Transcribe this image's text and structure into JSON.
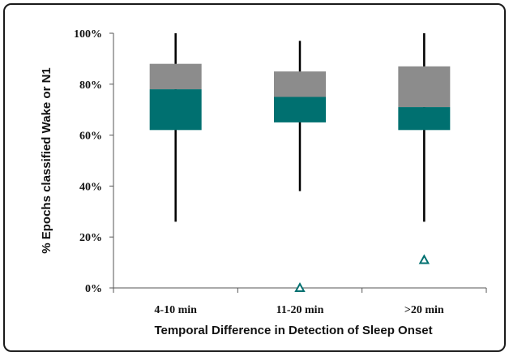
{
  "chart_data": {
    "type": "box",
    "title": "",
    "xlabel": "Temporal Difference in Detection of Sleep Onset",
    "ylabel": "% Epochs classified Wake or N1",
    "categories": [
      "4-10 min",
      "11-20 min",
      ">20 min"
    ],
    "ylim": [
      0,
      100
    ],
    "yticks": [
      0,
      20,
      40,
      60,
      80,
      100
    ],
    "ytick_labels": [
      "0%",
      "20%",
      "40%",
      "60%",
      "80%",
      "100%"
    ],
    "grid": false,
    "legend": "none",
    "boxes": [
      {
        "category": "4-10 min",
        "min": 26,
        "q1": 62,
        "median": 78,
        "q3": 88,
        "max": 100,
        "outliers": []
      },
      {
        "category": "11-20 min",
        "min": 38,
        "q1": 65,
        "median": 75,
        "q3": 85,
        "max": 97,
        "outliers": [
          0
        ]
      },
      {
        "category": ">20 min",
        "min": 26,
        "q1": 62,
        "median": 71,
        "q3": 87,
        "max": 100,
        "outliers": [
          11
        ]
      }
    ],
    "colors": {
      "lower_box": "#007070",
      "upper_box": "#8c8c8c",
      "whisker": "#000000",
      "outlier": "#007070",
      "axis": "#555555"
    }
  }
}
